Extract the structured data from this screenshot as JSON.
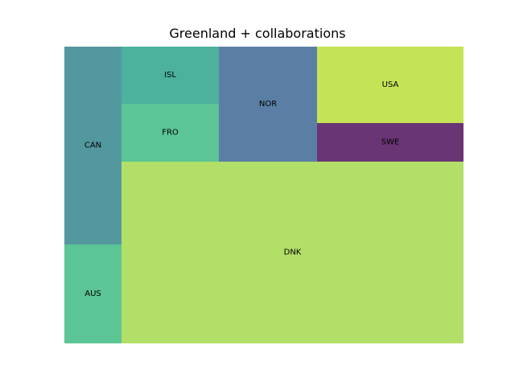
{
  "chart_data": {
    "type": "treemap",
    "title": "Greenland + collaborations",
    "cells": [
      {
        "label": "CAN",
        "value": 131,
        "color": "#53989F"
      },
      {
        "label": "AUS",
        "value": 65,
        "color": "#5BC596"
      },
      {
        "label": "ISL",
        "value": 62,
        "color": "#4CB19D"
      },
      {
        "label": "FRO",
        "value": 62,
        "color": "#5BC596"
      },
      {
        "label": "NOR",
        "value": 124,
        "color": "#5B7FA4"
      },
      {
        "label": "USA",
        "value": 84,
        "color": "#C4E356"
      },
      {
        "label": "SWE",
        "value": 43,
        "color": "#6A3574"
      },
      {
        "label": "DNK",
        "value": 721,
        "color": "#B2DF67"
      }
    ]
  }
}
